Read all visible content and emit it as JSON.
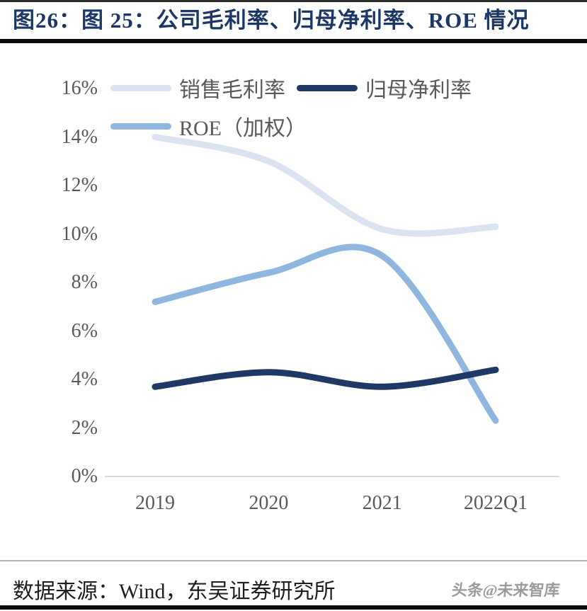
{
  "header": {
    "title": "图26：图 25：公司毛利率、归母净利率、ROE 情况"
  },
  "chart_data": {
    "type": "line",
    "smooth": true,
    "categories": [
      "2019",
      "2020",
      "2021",
      "2022Q1"
    ],
    "series": [
      {
        "key": "gross-margin",
        "name": "销售毛利率",
        "color": "#dbe3f0",
        "values": [
          14.0,
          13.0,
          10.2,
          10.3
        ]
      },
      {
        "key": "net-margin",
        "name": "归母净利率",
        "color": "#1f3864",
        "values": [
          3.7,
          4.3,
          3.7,
          4.4
        ]
      },
      {
        "key": "roe-weighted",
        "name": "ROE（加权）",
        "color": "#8fb6de",
        "values": [
          7.2,
          8.4,
          9.1,
          2.3
        ]
      }
    ],
    "title": "公司毛利率、归母净利率、ROE 情况",
    "xlabel": "",
    "ylabel": "",
    "ylim": [
      0,
      16
    ],
    "ytick_step": 2,
    "ytick_labels": [
      "0%",
      "2%",
      "4%",
      "6%",
      "8%",
      "10%",
      "12%",
      "14%",
      "16%"
    ],
    "grid": false,
    "legend_position": "top-left"
  },
  "footer": {
    "source": "数据来源：Wind，东吴证券研究所",
    "watermark": "头条@未来智库"
  },
  "colors": {
    "title_text": "#1c3766",
    "axis_text": "#595959",
    "legend_text": "#595959",
    "axis_line": "#d9d9d9",
    "divider": "#0a0a0a"
  }
}
